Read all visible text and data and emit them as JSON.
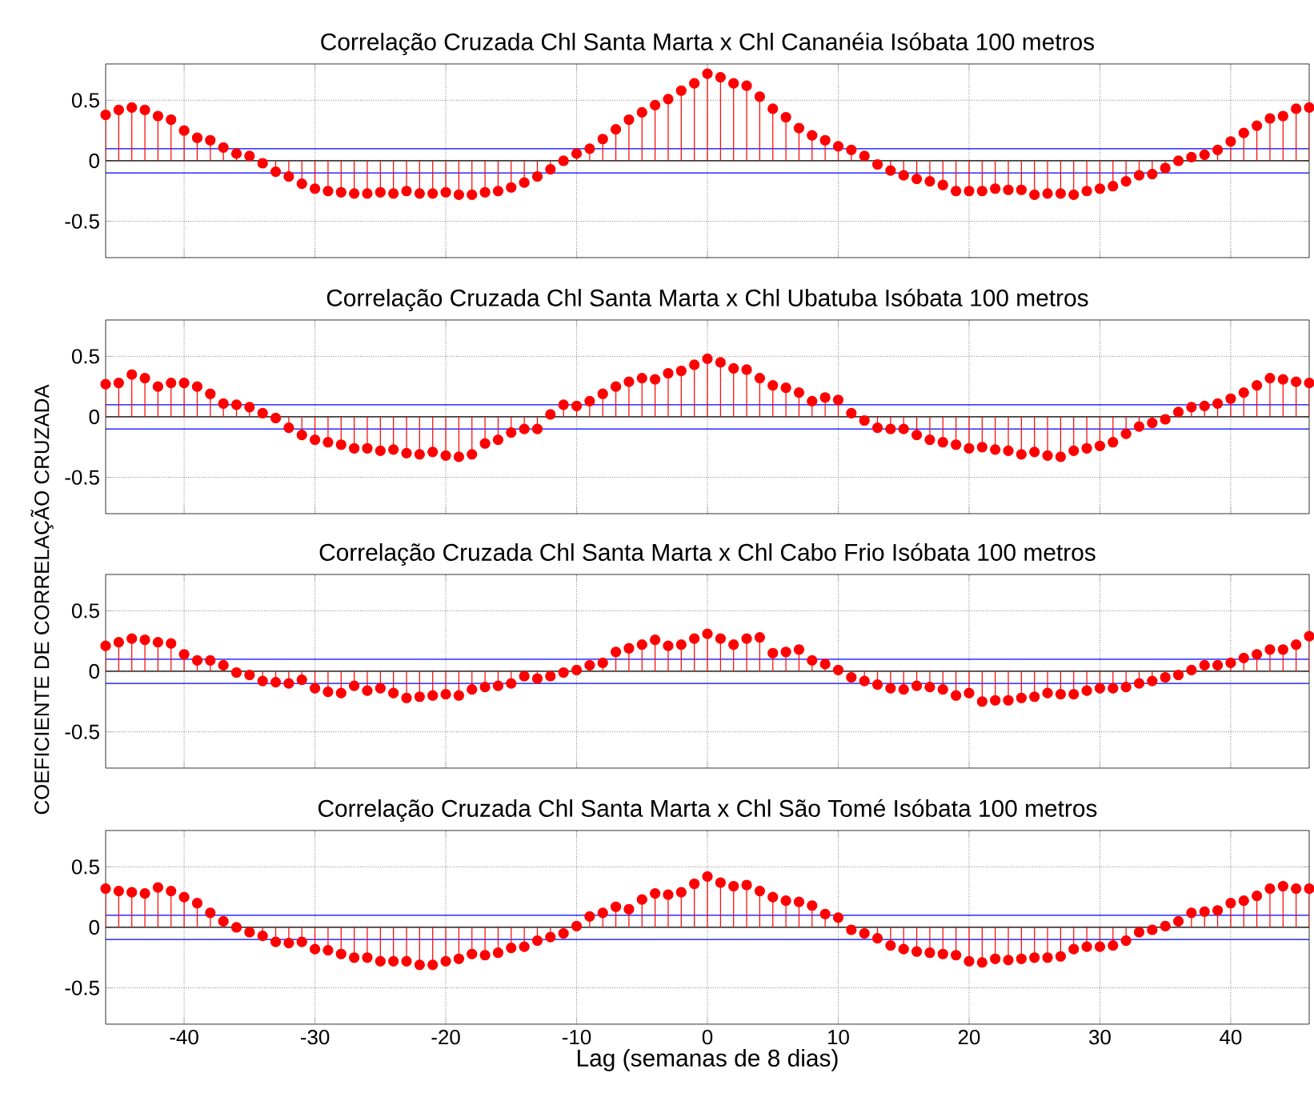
{
  "chart_data": [
    {
      "type": "lollipop",
      "title": "Correlação Cruzada Chl Santa Marta x Chl Cananéia Isóbata 100 metros",
      "color": "#ff0000",
      "marker": "circle",
      "grid": true,
      "tick_labels": "y",
      "xlim": [
        -46,
        46
      ],
      "ylim": [
        -0.8,
        0.8
      ],
      "xticks": [
        -40,
        -30,
        -20,
        -10,
        0,
        10,
        20,
        30,
        40
      ],
      "yticks": [
        -0.5,
        0,
        0.5
      ],
      "ref_lines": [
        {
          "axis": "y",
          "value": 0.1,
          "color": "#0000ff"
        },
        {
          "axis": "y",
          "value": -0.1,
          "color": "#0000ff"
        },
        {
          "axis": "y",
          "value": 0,
          "color": "#000000"
        }
      ],
      "x": [
        -46,
        -45,
        -44,
        -43,
        -42,
        -41,
        -40,
        -39,
        -38,
        -37,
        -36,
        -35,
        -34,
        -33,
        -32,
        -31,
        -30,
        -29,
        -28,
        -27,
        -26,
        -25,
        -24,
        -23,
        -22,
        -21,
        -20,
        -19,
        -18,
        -17,
        -16,
        -15,
        -14,
        -13,
        -12,
        -11,
        -10,
        -9,
        -8,
        -7,
        -6,
        -5,
        -4,
        -3,
        -2,
        -1,
        0,
        1,
        2,
        3,
        4,
        5,
        6,
        7,
        8,
        9,
        10,
        11,
        12,
        13,
        14,
        15,
        16,
        17,
        18,
        19,
        20,
        21,
        22,
        23,
        24,
        25,
        26,
        27,
        28,
        29,
        30,
        31,
        32,
        33,
        34,
        35,
        36,
        37,
        38,
        39,
        40,
        41,
        42,
        43,
        44,
        45,
        46
      ],
      "values": [
        0.38,
        0.42,
        0.44,
        0.42,
        0.37,
        0.34,
        0.25,
        0.19,
        0.17,
        0.11,
        0.06,
        0.04,
        -0.02,
        -0.09,
        -0.13,
        -0.19,
        -0.23,
        -0.25,
        -0.26,
        -0.27,
        -0.27,
        -0.26,
        -0.27,
        -0.25,
        -0.27,
        -0.27,
        -0.26,
        -0.28,
        -0.28,
        -0.26,
        -0.25,
        -0.22,
        -0.18,
        -0.13,
        -0.07,
        0.0,
        0.06,
        0.1,
        0.18,
        0.26,
        0.34,
        0.4,
        0.46,
        0.51,
        0.58,
        0.64,
        0.72,
        0.69,
        0.64,
        0.62,
        0.53,
        0.43,
        0.36,
        0.27,
        0.21,
        0.17,
        0.12,
        0.09,
        0.04,
        -0.03,
        -0.08,
        -0.12,
        -0.15,
        -0.17,
        -0.2,
        -0.25,
        -0.25,
        -0.25,
        -0.23,
        -0.24,
        -0.24,
        -0.28,
        -0.27,
        -0.27,
        -0.28,
        -0.25,
        -0.23,
        -0.21,
        -0.17,
        -0.12,
        -0.11,
        -0.06,
        0.0,
        0.03,
        0.05,
        0.09,
        0.16,
        0.23,
        0.29,
        0.35,
        0.37,
        0.43,
        0.44
      ]
    },
    {
      "type": "lollipop",
      "title": "Correlação Cruzada Chl Santa Marta x Chl Ubatuba Isóbata 100 metros",
      "color": "#ff0000",
      "marker": "circle",
      "grid": true,
      "tick_labels": "y",
      "xlim": [
        -46,
        46
      ],
      "ylim": [
        -0.8,
        0.8
      ],
      "xticks": [
        -40,
        -30,
        -20,
        -10,
        0,
        10,
        20,
        30,
        40
      ],
      "yticks": [
        -0.5,
        0,
        0.5
      ],
      "ref_lines": [
        {
          "axis": "y",
          "value": 0.1,
          "color": "#0000ff"
        },
        {
          "axis": "y",
          "value": -0.1,
          "color": "#0000ff"
        },
        {
          "axis": "y",
          "value": 0,
          "color": "#000000"
        }
      ],
      "x": [
        -46,
        -45,
        -44,
        -43,
        -42,
        -41,
        -40,
        -39,
        -38,
        -37,
        -36,
        -35,
        -34,
        -33,
        -32,
        -31,
        -30,
        -29,
        -28,
        -27,
        -26,
        -25,
        -24,
        -23,
        -22,
        -21,
        -20,
        -19,
        -18,
        -17,
        -16,
        -15,
        -14,
        -13,
        -12,
        -11,
        -10,
        -9,
        -8,
        -7,
        -6,
        -5,
        -4,
        -3,
        -2,
        -1,
        0,
        1,
        2,
        3,
        4,
        5,
        6,
        7,
        8,
        9,
        10,
        11,
        12,
        13,
        14,
        15,
        16,
        17,
        18,
        19,
        20,
        21,
        22,
        23,
        24,
        25,
        26,
        27,
        28,
        29,
        30,
        31,
        32,
        33,
        34,
        35,
        36,
        37,
        38,
        39,
        40,
        41,
        42,
        43,
        44,
        45,
        46
      ],
      "values": [
        0.27,
        0.28,
        0.35,
        0.32,
        0.25,
        0.28,
        0.28,
        0.25,
        0.19,
        0.11,
        0.1,
        0.08,
        0.03,
        -0.01,
        -0.09,
        -0.15,
        -0.19,
        -0.21,
        -0.23,
        -0.26,
        -0.26,
        -0.28,
        -0.27,
        -0.3,
        -0.31,
        -0.29,
        -0.32,
        -0.33,
        -0.31,
        -0.22,
        -0.19,
        -0.13,
        -0.1,
        -0.1,
        0.02,
        0.1,
        0.09,
        0.13,
        0.19,
        0.25,
        0.29,
        0.32,
        0.31,
        0.36,
        0.38,
        0.43,
        0.48,
        0.45,
        0.4,
        0.39,
        0.32,
        0.26,
        0.24,
        0.2,
        0.13,
        0.16,
        0.14,
        0.03,
        -0.03,
        -0.09,
        -0.1,
        -0.1,
        -0.15,
        -0.19,
        -0.21,
        -0.23,
        -0.26,
        -0.25,
        -0.27,
        -0.28,
        -0.31,
        -0.29,
        -0.32,
        -0.33,
        -0.28,
        -0.26,
        -0.24,
        -0.21,
        -0.14,
        -0.08,
        -0.05,
        -0.02,
        0.04,
        0.08,
        0.09,
        0.11,
        0.15,
        0.2,
        0.26,
        0.32,
        0.31,
        0.29,
        0.28
      ]
    },
    {
      "type": "lollipop",
      "title": "Correlação Cruzada Chl Santa Marta x Chl Cabo Frio Isóbata 100 metros",
      "ylabel": "COEFICIENTE DE CORRELAÇÃO CRUZADA",
      "color": "#ff0000",
      "marker": "circle",
      "grid": true,
      "tick_labels": "y",
      "xlim": [
        -46,
        46
      ],
      "ylim": [
        -0.8,
        0.8
      ],
      "xticks": [
        -40,
        -30,
        -20,
        -10,
        0,
        10,
        20,
        30,
        40
      ],
      "yticks": [
        -0.5,
        0,
        0.5
      ],
      "ref_lines": [
        {
          "axis": "y",
          "value": 0.1,
          "color": "#0000ff"
        },
        {
          "axis": "y",
          "value": -0.1,
          "color": "#0000ff"
        },
        {
          "axis": "y",
          "value": 0,
          "color": "#000000"
        }
      ],
      "x": [
        -46,
        -45,
        -44,
        -43,
        -42,
        -41,
        -40,
        -39,
        -38,
        -37,
        -36,
        -35,
        -34,
        -33,
        -32,
        -31,
        -30,
        -29,
        -28,
        -27,
        -26,
        -25,
        -24,
        -23,
        -22,
        -21,
        -20,
        -19,
        -18,
        -17,
        -16,
        -15,
        -14,
        -13,
        -12,
        -11,
        -10,
        -9,
        -8,
        -7,
        -6,
        -5,
        -4,
        -3,
        -2,
        -1,
        0,
        1,
        2,
        3,
        4,
        5,
        6,
        7,
        8,
        9,
        10,
        11,
        12,
        13,
        14,
        15,
        16,
        17,
        18,
        19,
        20,
        21,
        22,
        23,
        24,
        25,
        26,
        27,
        28,
        29,
        30,
        31,
        32,
        33,
        34,
        35,
        36,
        37,
        38,
        39,
        40,
        41,
        42,
        43,
        44,
        45,
        46
      ],
      "values": [
        0.21,
        0.24,
        0.27,
        0.26,
        0.24,
        0.23,
        0.14,
        0.09,
        0.09,
        0.05,
        -0.01,
        -0.03,
        -0.08,
        -0.09,
        -0.1,
        -0.07,
        -0.14,
        -0.17,
        -0.18,
        -0.12,
        -0.16,
        -0.14,
        -0.18,
        -0.22,
        -0.21,
        -0.2,
        -0.19,
        -0.2,
        -0.15,
        -0.13,
        -0.12,
        -0.1,
        -0.04,
        -0.06,
        -0.04,
        -0.01,
        0.01,
        0.05,
        0.07,
        0.16,
        0.19,
        0.22,
        0.26,
        0.21,
        0.22,
        0.27,
        0.31,
        0.27,
        0.22,
        0.27,
        0.28,
        0.15,
        0.16,
        0.18,
        0.09,
        0.06,
        0.01,
        -0.05,
        -0.08,
        -0.11,
        -0.14,
        -0.15,
        -0.12,
        -0.13,
        -0.15,
        -0.2,
        -0.18,
        -0.25,
        -0.24,
        -0.24,
        -0.22,
        -0.21,
        -0.18,
        -0.19,
        -0.19,
        -0.16,
        -0.14,
        -0.14,
        -0.13,
        -0.1,
        -0.08,
        -0.05,
        -0.03,
        0.01,
        0.05,
        0.05,
        0.07,
        0.11,
        0.14,
        0.18,
        0.18,
        0.22,
        0.29
      ]
    },
    {
      "type": "lollipop",
      "title": "Correlação Cruzada Chl Santa Marta x Chl São Tomé Isóbata 100 metros",
      "xlabel": "Lag (semanas de 8 dias)",
      "color": "#ff0000",
      "marker": "circle",
      "grid": true,
      "xlim": [
        -46,
        46
      ],
      "ylim": [
        -0.8,
        0.8
      ],
      "xticks": [
        -40,
        -30,
        -20,
        -10,
        0,
        10,
        20,
        30,
        40
      ],
      "yticks": [
        -0.5,
        0,
        0.5
      ],
      "ref_lines": [
        {
          "axis": "y",
          "value": 0.1,
          "color": "#0000ff"
        },
        {
          "axis": "y",
          "value": -0.1,
          "color": "#0000ff"
        },
        {
          "axis": "y",
          "value": 0,
          "color": "#000000"
        }
      ],
      "x": [
        -46,
        -45,
        -44,
        -43,
        -42,
        -41,
        -40,
        -39,
        -38,
        -37,
        -36,
        -35,
        -34,
        -33,
        -32,
        -31,
        -30,
        -29,
        -28,
        -27,
        -26,
        -25,
        -24,
        -23,
        -22,
        -21,
        -20,
        -19,
        -18,
        -17,
        -16,
        -15,
        -14,
        -13,
        -12,
        -11,
        -10,
        -9,
        -8,
        -7,
        -6,
        -5,
        -4,
        -3,
        -2,
        -1,
        0,
        1,
        2,
        3,
        4,
        5,
        6,
        7,
        8,
        9,
        10,
        11,
        12,
        13,
        14,
        15,
        16,
        17,
        18,
        19,
        20,
        21,
        22,
        23,
        24,
        25,
        26,
        27,
        28,
        29,
        30,
        31,
        32,
        33,
        34,
        35,
        36,
        37,
        38,
        39,
        40,
        41,
        42,
        43,
        44,
        45,
        46
      ],
      "values": [
        0.32,
        0.3,
        0.29,
        0.28,
        0.33,
        0.3,
        0.25,
        0.2,
        0.12,
        0.05,
        0.0,
        -0.04,
        -0.07,
        -0.12,
        -0.13,
        -0.12,
        -0.18,
        -0.19,
        -0.22,
        -0.25,
        -0.25,
        -0.28,
        -0.28,
        -0.28,
        -0.31,
        -0.31,
        -0.28,
        -0.26,
        -0.22,
        -0.23,
        -0.21,
        -0.17,
        -0.16,
        -0.11,
        -0.08,
        -0.05,
        0.01,
        0.09,
        0.12,
        0.17,
        0.15,
        0.23,
        0.28,
        0.27,
        0.29,
        0.36,
        0.42,
        0.37,
        0.34,
        0.35,
        0.3,
        0.25,
        0.22,
        0.21,
        0.18,
        0.11,
        0.08,
        -0.02,
        -0.05,
        -0.09,
        -0.15,
        -0.18,
        -0.2,
        -0.21,
        -0.22,
        -0.23,
        -0.28,
        -0.29,
        -0.26,
        -0.27,
        -0.26,
        -0.25,
        -0.25,
        -0.24,
        -0.18,
        -0.16,
        -0.16,
        -0.15,
        -0.11,
        -0.04,
        -0.02,
        0.01,
        0.05,
        0.12,
        0.13,
        0.14,
        0.2,
        0.22,
        0.26,
        0.32,
        0.34,
        0.32,
        0.32
      ]
    }
  ]
}
